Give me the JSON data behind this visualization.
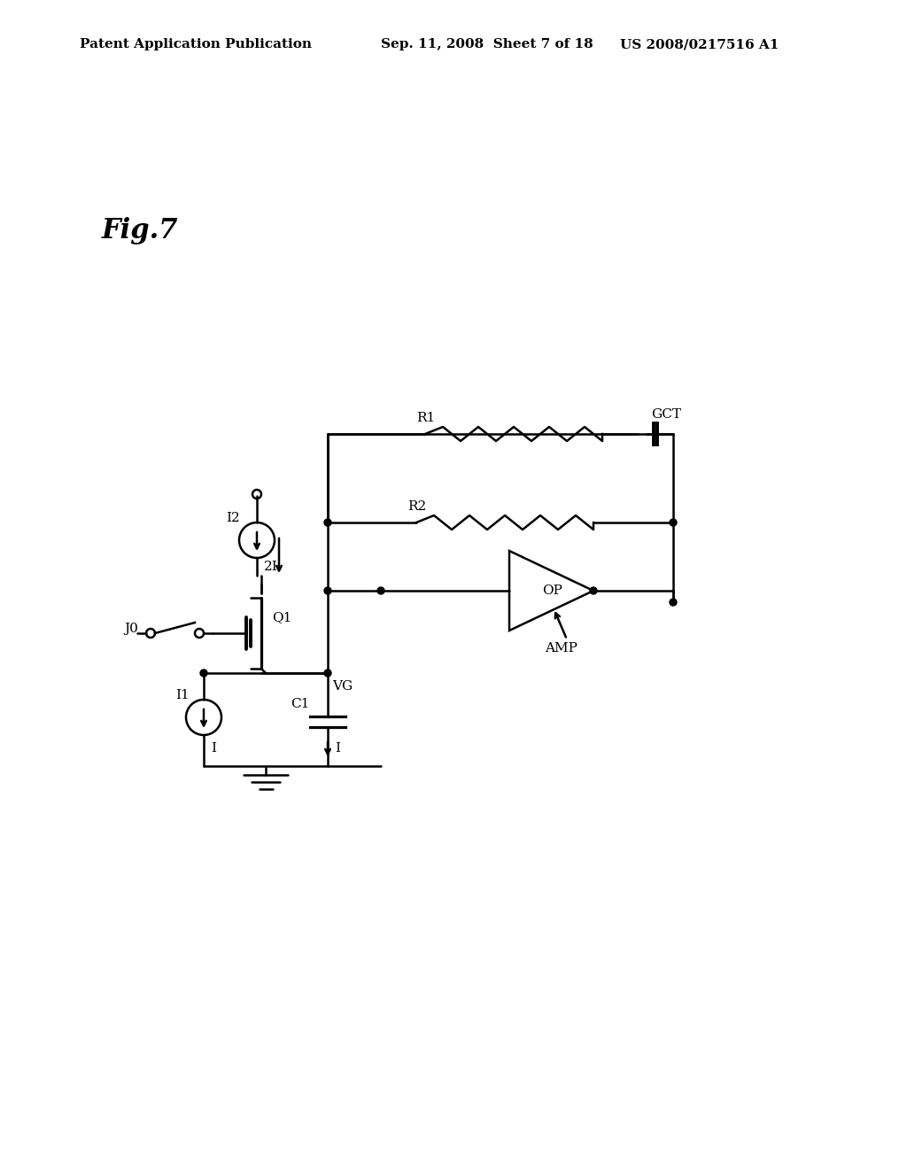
{
  "background_color": "#ffffff",
  "header_left": "Patent Application Publication",
  "header_center": "Sep. 11, 2008  Sheet 7 of 18",
  "header_right": "US 2008/0217516 A1",
  "fig_label": "Fig.7",
  "line_color": "#000000",
  "line_width": 1.8
}
